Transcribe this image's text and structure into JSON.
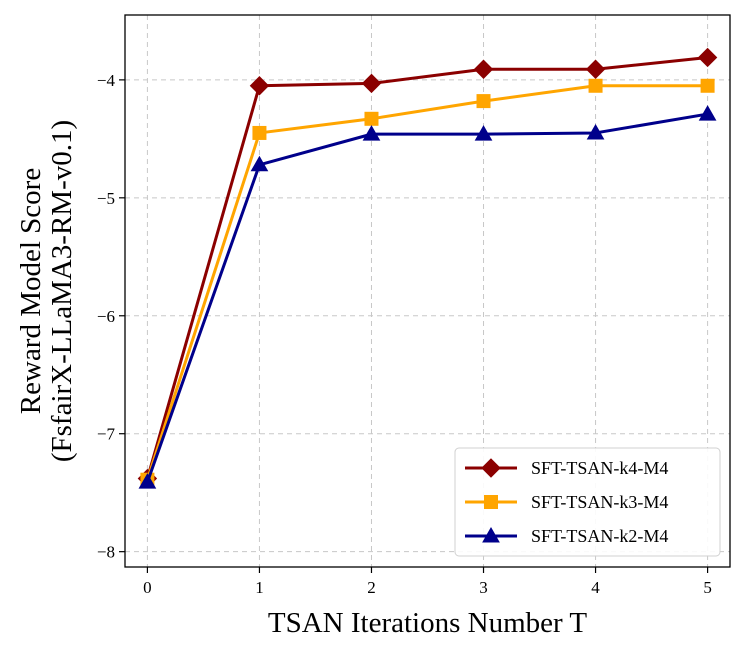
{
  "chart_data": {
    "type": "line",
    "title": "",
    "xlabel": "TSAN Iterations Number T",
    "ylabel_line1": "Reward Model Score",
    "ylabel_line2": "(FsfairX-LLaMA3-RM-v0.1)",
    "x": [
      0,
      1,
      2,
      3,
      4,
      5
    ],
    "xticks": [
      "0",
      "1",
      "2",
      "3",
      "4",
      "5"
    ],
    "yticks": [
      -8,
      -7,
      -6,
      -5,
      -4
    ],
    "ytick_labels": [
      "−8",
      "−7",
      "−6",
      "−5",
      "−4"
    ],
    "xlim": [
      -0.2,
      5.2
    ],
    "ylim": [
      -8.13,
      -3.45
    ],
    "grid": true,
    "legend_position": "lower-right",
    "series": [
      {
        "name": "SFT-TSAN-k4-M4",
        "color": "#8b0000",
        "marker": "diamond",
        "values": [
          -7.38,
          -4.05,
          -4.03,
          -3.91,
          -3.91,
          -3.81
        ]
      },
      {
        "name": "SFT-TSAN-k3-M4",
        "color": "#ffa500",
        "marker": "square",
        "values": [
          -7.39,
          -4.45,
          -4.33,
          -4.18,
          -4.05,
          -4.05
        ]
      },
      {
        "name": "SFT-TSAN-k2-M4",
        "color": "#00008b",
        "marker": "triangle",
        "values": [
          -7.41,
          -4.72,
          -4.46,
          -4.46,
          -4.45,
          -4.29
        ]
      }
    ]
  }
}
